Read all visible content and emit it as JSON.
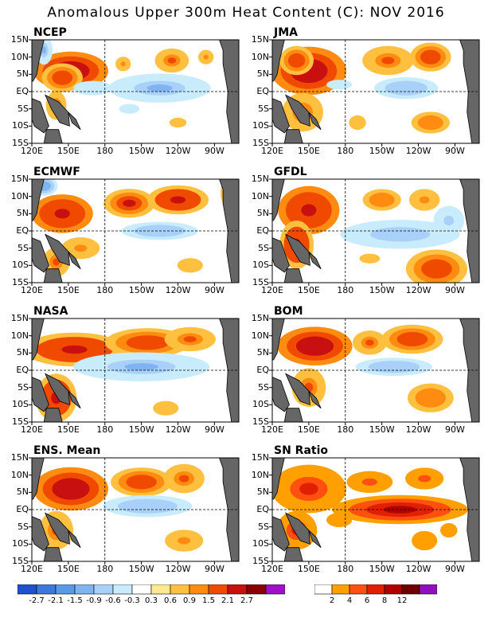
{
  "title": "Anomalous Upper 300m Heat Content (C): NOV 2016",
  "colors": {
    "anomaly_scale": [
      "#2050d0",
      "#3a78dc",
      "#5a98e8",
      "#80b4f0",
      "#a8d0f8",
      "#c8ecfc",
      "#ffffff",
      "#ffe890",
      "#ffc040",
      "#ff8c10",
      "#f04a00",
      "#c81010",
      "#8a0000",
      "#a010c8"
    ],
    "sn_scale": [
      "#ffffff",
      "#ffa000",
      "#ff5010",
      "#e02000",
      "#b00000",
      "#700000",
      "#9010c0"
    ],
    "land": "#666666"
  },
  "chart_data": [
    {
      "type": "heatmap",
      "name": "NCEP",
      "title": "NCEP",
      "xlabels": [
        "120E",
        "150E",
        "180",
        "150W",
        "120W",
        "90W"
      ],
      "ylabels": [
        "15N",
        "10N",
        "5N",
        "EQ",
        "5S",
        "10S",
        "15S"
      ],
      "xlim": [
        120,
        290
      ],
      "ylim": [
        -15,
        15
      ],
      "colorbar": "anomaly",
      "features": [
        {
          "lon": 152,
          "lat": 6,
          "rx": 22,
          "ry": 4,
          "v": 2.0
        },
        {
          "lon": 145,
          "lat": 4,
          "rx": 12,
          "ry": 3,
          "v": 1.2
        },
        {
          "lon": 195,
          "lat": 8,
          "rx": 6,
          "ry": 2,
          "v": 0.7
        },
        {
          "lon": 235,
          "lat": 9,
          "rx": 10,
          "ry": 2.5,
          "v": 0.9
        },
        {
          "lon": 263,
          "lat": 10,
          "rx": 6,
          "ry": 2,
          "v": 0.7
        },
        {
          "lon": 170,
          "lat": 1,
          "rx": 15,
          "ry": 2,
          "v": -0.6
        },
        {
          "lon": 225,
          "lat": 1,
          "rx": 30,
          "ry": 3,
          "v": -1.0
        },
        {
          "lon": 140,
          "lat": -4,
          "rx": 6,
          "ry": 3,
          "v": 0.9
        },
        {
          "lon": 240,
          "lat": -9,
          "rx": 10,
          "ry": 2,
          "v": 0.4
        },
        {
          "lon": 200,
          "lat": -5,
          "rx": 12,
          "ry": 2,
          "v": -0.4
        },
        {
          "lon": 130,
          "lat": 12,
          "rx": 5,
          "ry": 3,
          "v": -1.0
        }
      ]
    },
    {
      "type": "heatmap",
      "name": "JMA",
      "title": "JMA",
      "xlabels": [
        "120E",
        "150E",
        "180",
        "150W",
        "120W",
        "90W"
      ],
      "ylabels": [
        "15N",
        "10N",
        "5N",
        "EQ",
        "5S",
        "10S",
        "15S"
      ],
      "xlim": [
        120,
        290
      ],
      "ylim": [
        -15,
        15
      ],
      "colorbar": "anomaly",
      "features": [
        {
          "lon": 150,
          "lat": 6,
          "rx": 22,
          "ry": 5,
          "v": 2.0
        },
        {
          "lon": 140,
          "lat": 9,
          "rx": 10,
          "ry": 3,
          "v": 1.2
        },
        {
          "lon": 215,
          "lat": 9,
          "rx": 15,
          "ry": 3,
          "v": 1.0
        },
        {
          "lon": 250,
          "lat": 10,
          "rx": 12,
          "ry": 3,
          "v": 1.2
        },
        {
          "lon": 175,
          "lat": 2,
          "rx": 15,
          "ry": 2,
          "v": -0.5
        },
        {
          "lon": 230,
          "lat": 1,
          "rx": 25,
          "ry": 3,
          "v": -0.8
        },
        {
          "lon": 145,
          "lat": -6,
          "rx": 12,
          "ry": 4,
          "v": 1.0
        },
        {
          "lon": 250,
          "lat": -9,
          "rx": 15,
          "ry": 3,
          "v": 0.8
        },
        {
          "lon": 190,
          "lat": -9,
          "rx": 10,
          "ry": 3,
          "v": 0.5
        }
      ]
    },
    {
      "type": "heatmap",
      "name": "ECMWF",
      "title": "ECMWF",
      "xlabels": [
        "120E",
        "150E",
        "180",
        "150W",
        "120W",
        "90W"
      ],
      "ylabels": [
        "15N",
        "10N",
        "5N",
        "EQ",
        "5S",
        "10S",
        "15S"
      ],
      "xlim": [
        120,
        290
      ],
      "ylim": [
        -15,
        15
      ],
      "colorbar": "anomaly",
      "features": [
        {
          "lon": 145,
          "lat": 5,
          "rx": 18,
          "ry": 4,
          "v": 1.8
        },
        {
          "lon": 200,
          "lat": 8,
          "rx": 15,
          "ry": 3,
          "v": 1.5
        },
        {
          "lon": 240,
          "lat": 9,
          "rx": 18,
          "ry": 3,
          "v": 1.6
        },
        {
          "lon": 225,
          "lat": 0,
          "rx": 30,
          "ry": 2.5,
          "v": -0.8
        },
        {
          "lon": 160,
          "lat": -5,
          "rx": 15,
          "ry": 3,
          "v": 0.6
        },
        {
          "lon": 140,
          "lat": -9,
          "rx": 8,
          "ry": 3,
          "v": 1.0
        },
        {
          "lon": 130,
          "lat": 13,
          "rx": 8,
          "ry": 2,
          "v": -1.2
        },
        {
          "lon": 282,
          "lat": 11,
          "rx": 5,
          "ry": 3,
          "v": 1.5
        },
        {
          "lon": 250,
          "lat": -10,
          "rx": 15,
          "ry": 3,
          "v": 0.4
        }
      ]
    },
    {
      "type": "heatmap",
      "name": "GFDL",
      "title": "GFDL",
      "xlabels": [
        "120E",
        "150E",
        "180",
        "150W",
        "120W",
        "90W"
      ],
      "ylabels": [
        "15N",
        "10N",
        "5N",
        "EQ",
        "5S",
        "10S",
        "15S"
      ],
      "xlim": [
        120,
        290
      ],
      "ylim": [
        -15,
        15
      ],
      "colorbar": "anomaly",
      "features": [
        {
          "lon": 150,
          "lat": 6,
          "rx": 18,
          "ry": 5,
          "v": 1.8
        },
        {
          "lon": 140,
          "lat": -4,
          "rx": 10,
          "ry": 5,
          "v": 1.6
        },
        {
          "lon": 210,
          "lat": 9,
          "rx": 15,
          "ry": 3,
          "v": 0.8
        },
        {
          "lon": 245,
          "lat": 9,
          "rx": 12,
          "ry": 3,
          "v": 0.7
        },
        {
          "lon": 225,
          "lat": -1,
          "rx": 35,
          "ry": 3,
          "v": -0.9
        },
        {
          "lon": 265,
          "lat": 3,
          "rx": 12,
          "ry": 4,
          "v": -0.7
        },
        {
          "lon": 255,
          "lat": -11,
          "rx": 18,
          "ry": 4,
          "v": 1.4
        },
        {
          "lon": 200,
          "lat": -8,
          "rx": 12,
          "ry": 2,
          "v": 0.4
        }
      ]
    },
    {
      "type": "heatmap",
      "name": "NASA",
      "title": "NASA",
      "xlabels": [
        "120E",
        "150E",
        "180",
        "150W",
        "120W",
        "90W"
      ],
      "ylabels": [
        "15N",
        "10N",
        "5N",
        "EQ",
        "5S",
        "10S",
        "15S"
      ],
      "xlim": [
        120,
        290
      ],
      "ylim": [
        -15,
        15
      ],
      "colorbar": "anomaly",
      "features": [
        {
          "lon": 155,
          "lat": 6,
          "rx": 30,
          "ry": 3.5,
          "v": 1.6
        },
        {
          "lon": 215,
          "lat": 8,
          "rx": 25,
          "ry": 3,
          "v": 1.2
        },
        {
          "lon": 250,
          "lat": 9,
          "rx": 15,
          "ry": 2.5,
          "v": 0.9
        },
        {
          "lon": 210,
          "lat": 1,
          "rx": 40,
          "ry": 3,
          "v": -1.0
        },
        {
          "lon": 140,
          "lat": -8,
          "rx": 12,
          "ry": 5,
          "v": 1.6
        },
        {
          "lon": 230,
          "lat": -11,
          "rx": 15,
          "ry": 3,
          "v": 0.5
        }
      ]
    },
    {
      "type": "heatmap",
      "name": "BOM",
      "title": "BOM",
      "xlabels": [
        "120E",
        "150E",
        "180",
        "150W",
        "120W",
        "90W"
      ],
      "ylabels": [
        "15N",
        "10N",
        "5N",
        "EQ",
        "5S",
        "10S",
        "15S"
      ],
      "xlim": [
        120,
        290
      ],
      "ylim": [
        -15,
        15
      ],
      "colorbar": "anomaly",
      "features": [
        {
          "lon": 155,
          "lat": 7,
          "rx": 22,
          "ry": 4,
          "v": 2.0
        },
        {
          "lon": 200,
          "lat": 8,
          "rx": 10,
          "ry": 2.5,
          "v": 1.0
        },
        {
          "lon": 235,
          "lat": 9,
          "rx": 18,
          "ry": 3,
          "v": 1.2
        },
        {
          "lon": 220,
          "lat": 1,
          "rx": 30,
          "ry": 2.5,
          "v": -0.8
        },
        {
          "lon": 150,
          "lat": -5,
          "rx": 10,
          "ry": 4,
          "v": 1.0
        },
        {
          "lon": 250,
          "lat": -8,
          "rx": 18,
          "ry": 4,
          "v": 0.8
        }
      ]
    },
    {
      "type": "heatmap",
      "name": "ENS. Mean",
      "title": "ENS. Mean",
      "xlabels": [
        "120E",
        "150E",
        "180",
        "150W",
        "120W",
        "90W"
      ],
      "ylabels": [
        "15N",
        "10N",
        "5N",
        "EQ",
        "5S",
        "10S",
        "15S"
      ],
      "xlim": [
        120,
        290
      ],
      "ylim": [
        -15,
        15
      ],
      "colorbar": "anomaly",
      "features": [
        {
          "lon": 152,
          "lat": 6,
          "rx": 22,
          "ry": 4.5,
          "v": 2.0
        },
        {
          "lon": 210,
          "lat": 8,
          "rx": 18,
          "ry": 3,
          "v": 1.2
        },
        {
          "lon": 245,
          "lat": 9,
          "rx": 12,
          "ry": 3,
          "v": 1.0
        },
        {
          "lon": 215,
          "lat": 1,
          "rx": 35,
          "ry": 3,
          "v": -0.8
        },
        {
          "lon": 140,
          "lat": -6,
          "rx": 10,
          "ry": 4,
          "v": 1.0
        },
        {
          "lon": 245,
          "lat": -9,
          "rx": 15,
          "ry": 3,
          "v": 0.6
        }
      ]
    },
    {
      "type": "heatmap",
      "name": "SN Ratio",
      "title": "SN Ratio",
      "xlabels": [
        "120E",
        "150E",
        "180",
        "150W",
        "120W",
        "90W"
      ],
      "ylabels": [
        "15N",
        "10N",
        "5N",
        "EQ",
        "5S",
        "10S",
        "15S"
      ],
      "xlim": [
        120,
        290
      ],
      "ylim": [
        -15,
        15
      ],
      "colorbar": "sn",
      "features": [
        {
          "lon": 150,
          "lat": 6,
          "rx": 22,
          "ry": 5,
          "v": 7
        },
        {
          "lon": 225,
          "lat": 0,
          "rx": 40,
          "ry": 3,
          "v": 9
        },
        {
          "lon": 140,
          "lat": -6,
          "rx": 12,
          "ry": 4,
          "v": 6
        },
        {
          "lon": 200,
          "lat": 8,
          "rx": 18,
          "ry": 3,
          "v": 4
        },
        {
          "lon": 245,
          "lat": 9,
          "rx": 15,
          "ry": 3,
          "v": 4
        },
        {
          "lon": 245,
          "lat": -9,
          "rx": 15,
          "ry": 4,
          "v": 3
        },
        {
          "lon": 175,
          "lat": -3,
          "rx": 15,
          "ry": 3,
          "v": 3
        },
        {
          "lon": 265,
          "lat": -6,
          "rx": 10,
          "ry": 3,
          "v": 3
        }
      ]
    }
  ],
  "colorbar_anomaly": {
    "labels": [
      "-2.7",
      "-2.1",
      "-1.5",
      "-0.9",
      "-0.6",
      "-0.3",
      "0.3",
      "0.6",
      "0.9",
      "1.5",
      "2.1",
      "2.7"
    ]
  },
  "colorbar_sn": {
    "labels": [
      "2",
      "4",
      "6",
      "8",
      "12"
    ]
  }
}
